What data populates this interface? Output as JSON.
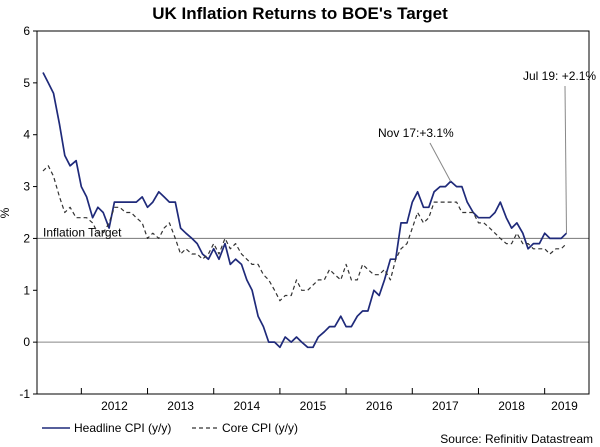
{
  "chart_data": {
    "type": "line",
    "title": "UK Inflation Returns to BOE's Target",
    "ylabel": "%",
    "xlabel": "",
    "ylim": [
      -1,
      6
    ],
    "yticks": [
      "-1",
      "0",
      "1",
      "2",
      "3",
      "4",
      "5",
      "6"
    ],
    "x_range": [
      2011.33,
      2019.67
    ],
    "x_ticks": [
      {
        "label": "2012",
        "at": 2012.5
      },
      {
        "label": "2013",
        "at": 2013.5
      },
      {
        "label": "2014",
        "at": 2014.5
      },
      {
        "label": "2015",
        "at": 2015.5
      },
      {
        "label": "2016",
        "at": 2016.5
      },
      {
        "label": "2017",
        "at": 2017.5
      },
      {
        "label": "2018",
        "at": 2018.5
      },
      {
        "label": "2019",
        "at": 2019.3
      }
    ],
    "reference_line": {
      "value": 2,
      "label": "Inflation Target"
    },
    "series": [
      {
        "name": "Headline CPI (y/y)",
        "style": "solid",
        "color": "#1f2a7a",
        "points": [
          [
            2011.42,
            5.2
          ],
          [
            2011.5,
            5.0
          ],
          [
            2011.58,
            4.8
          ],
          [
            2011.67,
            4.2
          ],
          [
            2011.75,
            3.6
          ],
          [
            2011.83,
            3.4
          ],
          [
            2011.92,
            3.5
          ],
          [
            2012.0,
            3.0
          ],
          [
            2012.08,
            2.8
          ],
          [
            2012.17,
            2.4
          ],
          [
            2012.25,
            2.6
          ],
          [
            2012.33,
            2.5
          ],
          [
            2012.42,
            2.2
          ],
          [
            2012.5,
            2.7
          ],
          [
            2012.58,
            2.7
          ],
          [
            2012.67,
            2.7
          ],
          [
            2012.75,
            2.7
          ],
          [
            2012.83,
            2.7
          ],
          [
            2012.92,
            2.8
          ],
          [
            2013.0,
            2.6
          ],
          [
            2013.08,
            2.7
          ],
          [
            2013.17,
            2.9
          ],
          [
            2013.25,
            2.8
          ],
          [
            2013.33,
            2.7
          ],
          [
            2013.42,
            2.7
          ],
          [
            2013.5,
            2.2
          ],
          [
            2013.58,
            2.1
          ],
          [
            2013.67,
            2.0
          ],
          [
            2013.75,
            1.9
          ],
          [
            2013.83,
            1.7
          ],
          [
            2013.92,
            1.6
          ],
          [
            2014.0,
            1.8
          ],
          [
            2014.08,
            1.6
          ],
          [
            2014.17,
            1.9
          ],
          [
            2014.25,
            1.5
          ],
          [
            2014.33,
            1.6
          ],
          [
            2014.42,
            1.5
          ],
          [
            2014.5,
            1.2
          ],
          [
            2014.58,
            1.0
          ],
          [
            2014.67,
            0.5
          ],
          [
            2014.75,
            0.3
          ],
          [
            2014.83,
            0.0
          ],
          [
            2014.92,
            0.0
          ],
          [
            2015.0,
            -0.1
          ],
          [
            2015.08,
            0.1
          ],
          [
            2015.17,
            0.0
          ],
          [
            2015.25,
            0.1
          ],
          [
            2015.33,
            0.0
          ],
          [
            2015.42,
            -0.1
          ],
          [
            2015.5,
            -0.1
          ],
          [
            2015.58,
            0.1
          ],
          [
            2015.67,
            0.2
          ],
          [
            2015.75,
            0.3
          ],
          [
            2015.83,
            0.3
          ],
          [
            2015.92,
            0.5
          ],
          [
            2016.0,
            0.3
          ],
          [
            2016.08,
            0.3
          ],
          [
            2016.17,
            0.5
          ],
          [
            2016.25,
            0.6
          ],
          [
            2016.33,
            0.6
          ],
          [
            2016.42,
            1.0
          ],
          [
            2016.5,
            0.9
          ],
          [
            2016.58,
            1.2
          ],
          [
            2016.67,
            1.6
          ],
          [
            2016.75,
            1.6
          ],
          [
            2016.83,
            2.3
          ],
          [
            2016.92,
            2.3
          ],
          [
            2017.0,
            2.7
          ],
          [
            2017.08,
            2.9
          ],
          [
            2017.17,
            2.6
          ],
          [
            2017.25,
            2.6
          ],
          [
            2017.33,
            2.9
          ],
          [
            2017.42,
            3.0
          ],
          [
            2017.5,
            3.0
          ],
          [
            2017.58,
            3.1
          ],
          [
            2017.67,
            3.0
          ],
          [
            2017.75,
            3.0
          ],
          [
            2017.83,
            2.7
          ],
          [
            2017.92,
            2.5
          ],
          [
            2018.0,
            2.4
          ],
          [
            2018.08,
            2.4
          ],
          [
            2018.17,
            2.4
          ],
          [
            2018.25,
            2.5
          ],
          [
            2018.33,
            2.7
          ],
          [
            2018.42,
            2.4
          ],
          [
            2018.5,
            2.2
          ],
          [
            2018.58,
            2.3
          ],
          [
            2018.67,
            2.1
          ],
          [
            2018.75,
            1.8
          ],
          [
            2018.83,
            1.9
          ],
          [
            2018.92,
            1.9
          ],
          [
            2019.0,
            2.1
          ],
          [
            2019.08,
            2.0
          ],
          [
            2019.17,
            2.0
          ],
          [
            2019.25,
            2.0
          ],
          [
            2019.33,
            2.1
          ]
        ]
      },
      {
        "name": "Core CPI (y/y)",
        "style": "dashed",
        "color": "#333333",
        "points": [
          [
            2011.42,
            3.3
          ],
          [
            2011.5,
            3.4
          ],
          [
            2011.58,
            3.2
          ],
          [
            2011.67,
            2.8
          ],
          [
            2011.75,
            2.5
          ],
          [
            2011.83,
            2.6
          ],
          [
            2011.92,
            2.4
          ],
          [
            2012.0,
            2.4
          ],
          [
            2012.08,
            2.4
          ],
          [
            2012.17,
            2.3
          ],
          [
            2012.25,
            2.1
          ],
          [
            2012.33,
            2.1
          ],
          [
            2012.42,
            2.3
          ],
          [
            2012.5,
            2.6
          ],
          [
            2012.58,
            2.6
          ],
          [
            2012.67,
            2.5
          ],
          [
            2012.75,
            2.5
          ],
          [
            2012.83,
            2.4
          ],
          [
            2012.92,
            2.3
          ],
          [
            2013.0,
            2.0
          ],
          [
            2013.08,
            2.1
          ],
          [
            2013.17,
            2.0
          ],
          [
            2013.25,
            2.2
          ],
          [
            2013.33,
            2.3
          ],
          [
            2013.42,
            2.0
          ],
          [
            2013.5,
            1.7
          ],
          [
            2013.58,
            1.8
          ],
          [
            2013.67,
            1.7
          ],
          [
            2013.75,
            1.7
          ],
          [
            2013.83,
            1.6
          ],
          [
            2013.92,
            1.7
          ],
          [
            2014.0,
            1.9
          ],
          [
            2014.08,
            1.7
          ],
          [
            2014.17,
            2.0
          ],
          [
            2014.25,
            1.8
          ],
          [
            2014.33,
            1.9
          ],
          [
            2014.42,
            1.7
          ],
          [
            2014.5,
            1.6
          ],
          [
            2014.58,
            1.5
          ],
          [
            2014.67,
            1.5
          ],
          [
            2014.75,
            1.3
          ],
          [
            2014.83,
            1.2
          ],
          [
            2014.92,
            1.0
          ],
          [
            2015.0,
            0.8
          ],
          [
            2015.08,
            0.9
          ],
          [
            2015.17,
            0.9
          ],
          [
            2015.25,
            1.2
          ],
          [
            2015.33,
            1.0
          ],
          [
            2015.42,
            1.0
          ],
          [
            2015.5,
            1.1
          ],
          [
            2015.58,
            1.2
          ],
          [
            2015.67,
            1.2
          ],
          [
            2015.75,
            1.4
          ],
          [
            2015.83,
            1.3
          ],
          [
            2015.92,
            1.2
          ],
          [
            2016.0,
            1.5
          ],
          [
            2016.08,
            1.2
          ],
          [
            2016.17,
            1.2
          ],
          [
            2016.25,
            1.5
          ],
          [
            2016.33,
            1.4
          ],
          [
            2016.42,
            1.3
          ],
          [
            2016.5,
            1.3
          ],
          [
            2016.58,
            1.4
          ],
          [
            2016.67,
            1.2
          ],
          [
            2016.75,
            1.6
          ],
          [
            2016.83,
            1.8
          ],
          [
            2016.92,
            1.9
          ],
          [
            2017.0,
            2.2
          ],
          [
            2017.08,
            2.5
          ],
          [
            2017.17,
            2.3
          ],
          [
            2017.25,
            2.4
          ],
          [
            2017.33,
            2.7
          ],
          [
            2017.42,
            2.7
          ],
          [
            2017.5,
            2.7
          ],
          [
            2017.58,
            2.7
          ],
          [
            2017.67,
            2.7
          ],
          [
            2017.75,
            2.5
          ],
          [
            2017.83,
            2.5
          ],
          [
            2017.92,
            2.5
          ],
          [
            2018.0,
            2.3
          ],
          [
            2018.08,
            2.3
          ],
          [
            2018.17,
            2.2
          ],
          [
            2018.25,
            2.1
          ],
          [
            2018.33,
            2.0
          ],
          [
            2018.42,
            1.9
          ],
          [
            2018.5,
            1.9
          ],
          [
            2018.58,
            2.1
          ],
          [
            2018.67,
            1.9
          ],
          [
            2018.75,
            1.9
          ],
          [
            2018.83,
            1.8
          ],
          [
            2018.92,
            1.8
          ],
          [
            2019.0,
            1.8
          ],
          [
            2019.08,
            1.7
          ],
          [
            2019.17,
            1.8
          ],
          [
            2019.25,
            1.8
          ],
          [
            2019.33,
            1.9
          ]
        ]
      }
    ],
    "annotations": [
      {
        "text": "Nov 17:+3.1%",
        "point": [
          2017.58,
          3.1
        ]
      },
      {
        "text": "Jul 19: +2.1%",
        "point": [
          2019.33,
          2.1
        ]
      }
    ],
    "legend_position": "bottom-left",
    "grid": false,
    "source": "Source: Refinitiv Datastream"
  }
}
